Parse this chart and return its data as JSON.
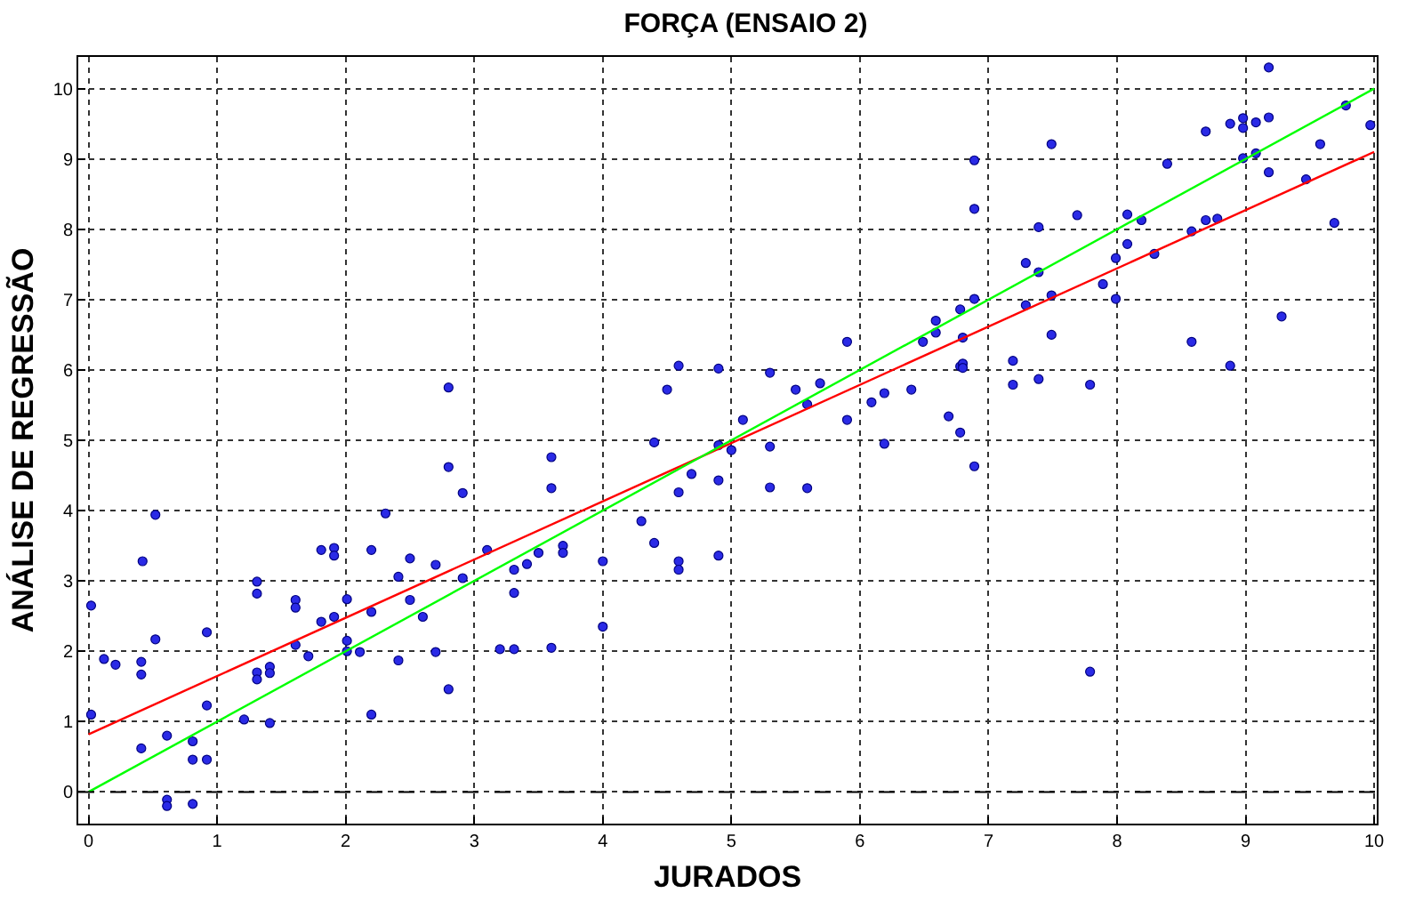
{
  "chart_data": {
    "type": "scatter",
    "title": "FORÇA (ENSAIO 2)",
    "xlabel": "JURADOS",
    "ylabel": "ANÁLISE DE REGRESSÃO",
    "xlim": [
      -0.08,
      10.02
    ],
    "ylim": [
      -0.45,
      10.45
    ],
    "xticks": [
      0,
      1,
      2,
      3,
      4,
      5,
      6,
      7,
      8,
      9,
      10
    ],
    "yticks": [
      0,
      1,
      2,
      3,
      4,
      5,
      6,
      7,
      8,
      9,
      10
    ],
    "grid": true,
    "marker": "circle",
    "ref_lines": [
      {
        "axis": "y",
        "value": 0,
        "color": "#000000",
        "line_style": "dashed"
      }
    ],
    "series": [
      {
        "color": "#2a2ae6",
        "x": [
          0.02,
          0.02,
          0.12,
          0.21,
          0.41,
          0.41,
          0.42,
          0.52,
          0.52,
          0.41,
          0.61,
          0.61,
          0.61,
          0.81,
          0.81,
          0.81,
          0.92,
          0.92,
          0.92,
          1.21,
          1.31,
          1.31,
          1.31,
          1.31,
          1.41,
          1.41,
          1.41,
          1.61,
          1.61,
          1.61,
          1.71,
          1.81,
          1.91,
          1.91,
          1.91,
          1.81,
          2.01,
          2.01,
          2.01,
          2.11,
          2.2,
          2.2,
          2.2,
          2.31,
          2.41,
          2.41,
          2.5,
          2.5,
          2.6,
          2.7,
          2.7,
          2.8,
          2.8,
          2.91,
          2.91,
          3.1,
          3.2,
          3.31,
          3.31,
          3.31,
          3.41,
          3.5,
          2.8,
          3.69,
          3.69,
          3.6,
          3.6,
          3.6,
          4.0,
          4.0,
          4.3,
          4.4,
          4.4,
          4.5,
          4.59,
          4.59,
          4.59,
          4.59,
          4.69,
          4.9,
          4.9,
          4.9,
          4.9,
          5.0,
          5.09,
          5.3,
          5.3,
          5.3,
          5.5,
          5.59,
          5.59,
          5.69,
          5.9,
          5.9,
          6.09,
          6.19,
          6.19,
          6.4,
          6.49,
          6.59,
          6.59,
          6.69,
          6.78,
          6.78,
          6.78,
          6.8,
          6.8,
          6.8,
          6.89,
          6.89,
          6.89,
          7.19,
          7.19,
          7.29,
          7.29,
          7.39,
          7.39,
          7.39,
          7.49,
          7.49,
          7.49,
          7.69,
          7.79,
          7.89,
          7.99,
          7.99,
          8.08,
          8.08,
          8.19,
          8.29,
          8.39,
          8.58,
          8.58,
          8.69,
          8.69,
          8.78,
          8.88,
          8.88,
          8.98,
          8.98,
          8.98,
          9.08,
          9.08,
          9.18,
          9.18,
          9.18,
          9.28,
          9.47,
          9.58,
          9.69,
          9.78,
          9.97,
          6.89,
          7.79
        ],
        "values": [
          2.65,
          1.1,
          1.89,
          1.81,
          1.85,
          1.67,
          3.28,
          3.94,
          2.17,
          0.62,
          0.8,
          -0.11,
          -0.2,
          0.72,
          0.46,
          -0.17,
          0.46,
          1.23,
          2.27,
          1.03,
          2.99,
          2.82,
          1.7,
          1.6,
          1.78,
          1.69,
          0.98,
          2.73,
          2.62,
          2.09,
          1.93,
          3.44,
          3.47,
          3.36,
          2.49,
          2.42,
          2.74,
          2.15,
          2.0,
          1.99,
          2.56,
          1.1,
          3.44,
          3.96,
          3.06,
          1.87,
          3.32,
          2.73,
          2.49,
          3.23,
          1.99,
          4.62,
          1.46,
          4.25,
          3.04,
          3.44,
          2.03,
          2.03,
          3.16,
          2.83,
          3.24,
          3.4,
          5.75,
          3.5,
          3.4,
          4.76,
          4.32,
          2.05,
          3.28,
          2.35,
          3.85,
          3.54,
          4.97,
          5.72,
          6.06,
          4.26,
          3.28,
          3.16,
          4.52,
          6.02,
          4.93,
          4.43,
          3.36,
          4.86,
          5.29,
          5.96,
          4.91,
          4.33,
          5.72,
          5.51,
          4.32,
          5.81,
          6.4,
          5.29,
          5.54,
          5.67,
          4.95,
          5.72,
          6.4,
          6.7,
          6.53,
          5.34,
          6.86,
          6.05,
          5.11,
          6.46,
          6.09,
          6.03,
          7.01,
          8.29,
          8.98,
          6.13,
          5.79,
          7.52,
          6.92,
          7.39,
          8.03,
          5.87,
          9.21,
          7.06,
          6.5,
          8.2,
          5.79,
          7.22,
          7.59,
          7.01,
          8.21,
          7.79,
          8.13,
          7.65,
          8.93,
          7.97,
          6.4,
          9.39,
          8.13,
          8.15,
          9.5,
          6.06,
          9.58,
          9.44,
          9.01,
          9.52,
          9.08,
          10.3,
          9.59,
          8.81,
          6.76,
          8.71,
          9.21,
          8.09,
          9.76,
          9.48,
          4.63,
          1.71
        ]
      },
      {
        "type": "line",
        "color": "#ff0000",
        "marker": "none",
        "line_style": "solid",
        "x": [
          0,
          10
        ],
        "values": [
          0.82,
          9.1
        ]
      },
      {
        "type": "line",
        "color": "#00ff00",
        "marker": "none",
        "line_style": "solid",
        "x": [
          0,
          10
        ],
        "values": [
          0,
          10
        ]
      }
    ]
  }
}
